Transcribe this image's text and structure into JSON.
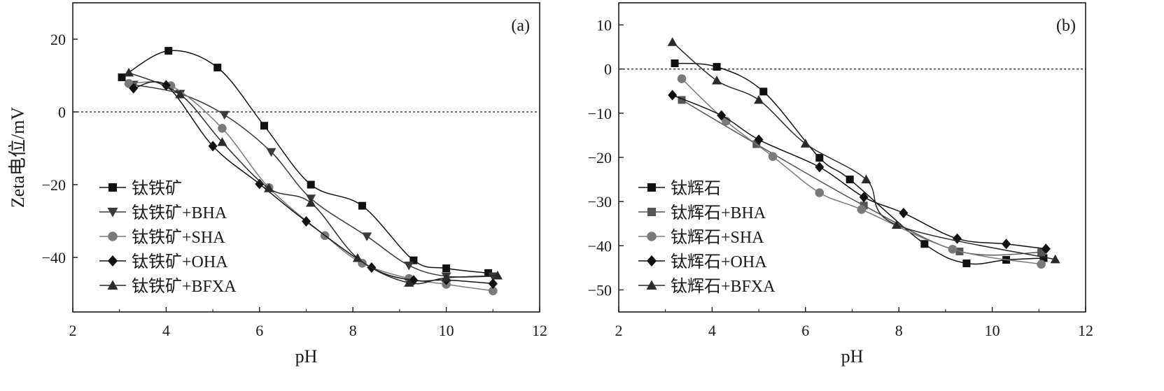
{
  "figure": {
    "ylabel": "Zeta电位/mV"
  },
  "chart_data": [
    {
      "type": "line",
      "panel_label": "(a)",
      "xlabel": "pH",
      "ylabel": "Zeta电位/mV",
      "xlim": [
        2,
        12
      ],
      "ylim": [
        -55,
        30
      ],
      "xticks": [
        2,
        4,
        6,
        8,
        10,
        12
      ],
      "yticks": [
        20,
        0,
        -20,
        -40
      ],
      "reference_line": {
        "y": 0,
        "style": "dashed"
      },
      "grid": false,
      "legend_position": "bottom-left",
      "series": [
        {
          "name": "钛铁矿",
          "marker": "square",
          "color": "#111111",
          "x": [
            3.05,
            4.05,
            5.1,
            6.1,
            7.1,
            8.2,
            9.3,
            10.0,
            10.9
          ],
          "y": [
            9.5,
            16.8,
            12.2,
            -3.8,
            -20.0,
            -25.8,
            -40.8,
            -43.0,
            -44.3
          ]
        },
        {
          "name": "钛铁矿+BHA",
          "marker": "triangle-down",
          "color": "#3a3a3a",
          "x": [
            3.3,
            4.3,
            5.25,
            6.25,
            7.1,
            8.3,
            9.2,
            10.0,
            11.0
          ],
          "y": [
            7.5,
            5.0,
            -0.8,
            -11.0,
            -23.8,
            -34.2,
            -42.2,
            -45.2,
            -45.2
          ]
        },
        {
          "name": "钛铁矿+SHA",
          "marker": "circle",
          "color": "#7a7a7a",
          "x": [
            3.2,
            4.1,
            5.2,
            6.2,
            7.4,
            8.2,
            9.2,
            10.0,
            11.0
          ],
          "y": [
            7.8,
            7.2,
            -4.5,
            -20.8,
            -34.0,
            -41.6,
            -45.8,
            -47.4,
            -49.2
          ]
        },
        {
          "name": "钛铁矿+OHA",
          "marker": "diamond",
          "color": "#111111",
          "x": [
            3.3,
            4.0,
            5.0,
            6.0,
            7.0,
            8.4,
            9.3,
            10.0,
            11.0
          ],
          "y": [
            6.5,
            7.3,
            -9.4,
            -19.8,
            -30.1,
            -42.8,
            -46.3,
            -46.2,
            -47.2
          ]
        },
        {
          "name": "钛铁矿+BFXA",
          "marker": "triangle-up",
          "color": "#2a2a2a",
          "x": [
            3.2,
            4.3,
            5.2,
            6.2,
            7.1,
            8.1,
            9.2,
            10.0,
            11.1
          ],
          "y": [
            10.8,
            4.8,
            -8.3,
            -21.0,
            -25.0,
            -40.2,
            -47.0,
            -45.6,
            -45.0
          ]
        }
      ]
    },
    {
      "type": "line",
      "panel_label": "(b)",
      "xlabel": "pH",
      "ylabel": "",
      "xlim": [
        2,
        12
      ],
      "ylim": [
        -55,
        15
      ],
      "xticks": [
        2,
        4,
        6,
        8,
        10,
        12
      ],
      "yticks": [
        10,
        0,
        -10,
        -20,
        -30,
        -40,
        -50
      ],
      "reference_line": {
        "y": 0,
        "style": "dashed"
      },
      "grid": false,
      "legend_position": "bottom-left",
      "series": [
        {
          "name": "钛辉石",
          "marker": "square",
          "color": "#111111",
          "x": [
            3.2,
            4.1,
            5.1,
            6.3,
            6.95,
            8.55,
            9.45,
            10.3,
            11.1
          ],
          "y": [
            1.3,
            0.5,
            -5.1,
            -20.1,
            -25.0,
            -39.6,
            -44.0,
            -43.2,
            -42.8
          ]
        },
        {
          "name": "钛辉石+BHA",
          "marker": "square",
          "color": "#555555",
          "x": [
            3.35,
            4.95,
            7.25,
            9.3,
            11.05
          ],
          "y": [
            -7.0,
            -17.0,
            -30.9,
            -41.3,
            -41.5
          ]
        },
        {
          "name": "钛辉石+SHA",
          "marker": "circle",
          "color": "#7a7a7a",
          "x": [
            3.35,
            4.3,
            5.3,
            6.3,
            7.2,
            9.15,
            11.05
          ],
          "y": [
            -2.2,
            -11.8,
            -19.8,
            -28.0,
            -31.8,
            -40.8,
            -44.2
          ]
        },
        {
          "name": "钛辉石+OHA",
          "marker": "diamond",
          "color": "#111111",
          "x": [
            3.15,
            4.2,
            5.0,
            6.3,
            7.25,
            8.1,
            9.25,
            10.3,
            11.15
          ],
          "y": [
            -5.9,
            -10.5,
            -16.0,
            -22.2,
            -29.0,
            -32.6,
            -38.4,
            -39.6,
            -40.7
          ]
        },
        {
          "name": "钛辉石+BFXA",
          "marker": "triangle-up",
          "color": "#2a2a2a",
          "x": [
            3.15,
            4.1,
            5.0,
            6.0,
            7.3,
            7.95,
            11.35
          ],
          "y": [
            6.1,
            -2.6,
            -7.0,
            -16.9,
            -25.0,
            -35.3,
            -43.1
          ]
        }
      ]
    }
  ]
}
